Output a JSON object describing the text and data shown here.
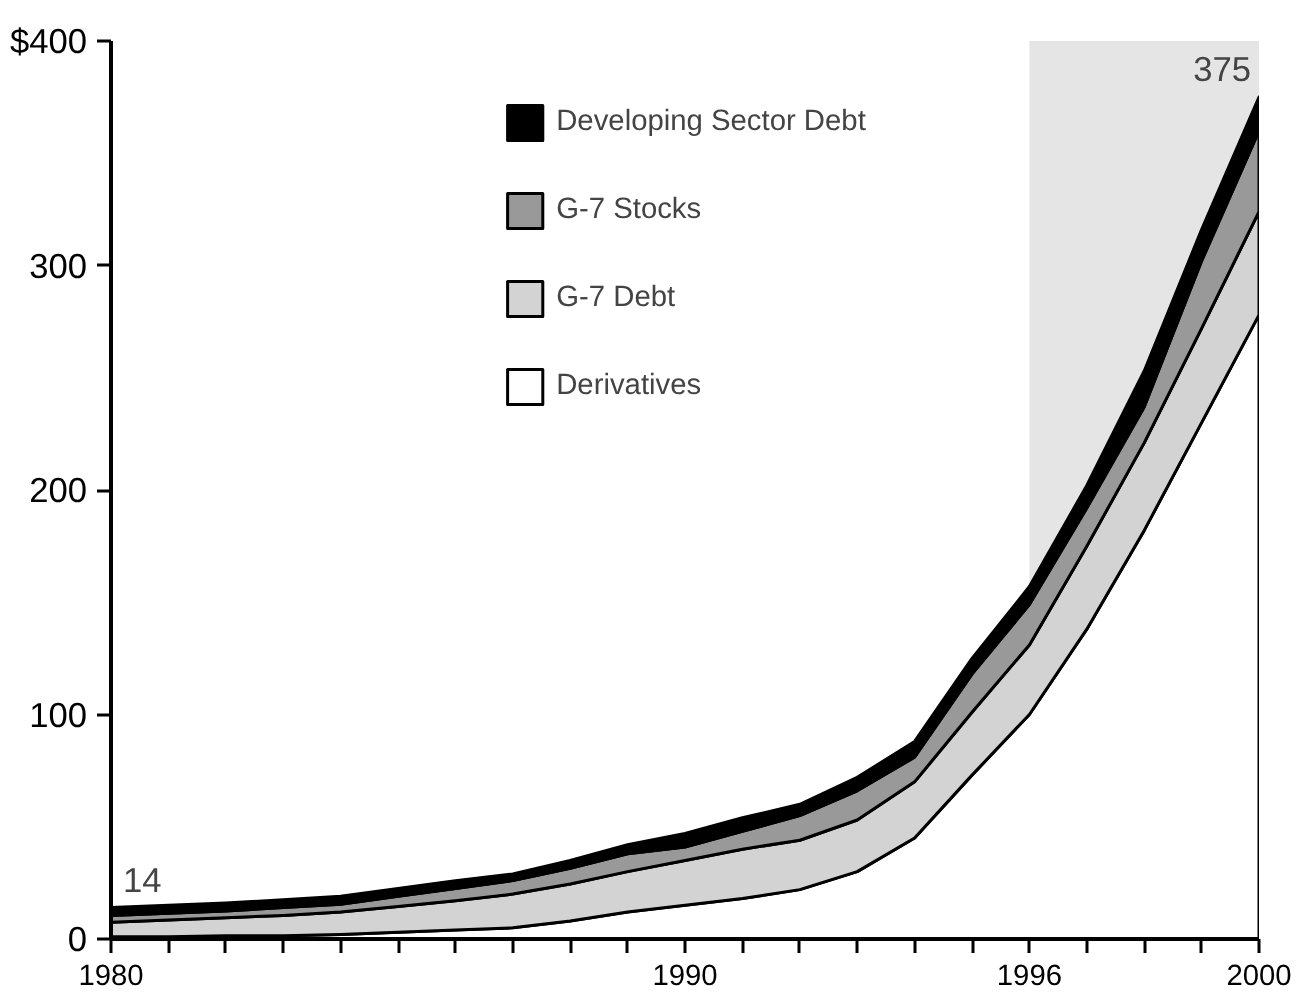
{
  "chart_data": {
    "type": "area",
    "stacked": true,
    "x": [
      1980,
      1981,
      1982,
      1983,
      1984,
      1985,
      1986,
      1987,
      1988,
      1989,
      1990,
      1991,
      1992,
      1993,
      1994,
      1995,
      1996,
      1997,
      1998,
      1999,
      2000
    ],
    "series": [
      {
        "name": "Derivatives",
        "color": "#ffffff",
        "values": [
          1,
          1,
          1.5,
          1.5,
          2,
          3,
          4,
          5,
          8,
          12,
          15,
          18,
          22,
          30,
          45,
          73,
          100,
          138,
          182,
          230,
          278
        ]
      },
      {
        "name": "G-7 Debt",
        "color": "#d3d3d3",
        "values": [
          6.5,
          7.5,
          8,
          9,
          10,
          11.5,
          13,
          15,
          16.5,
          18,
          20,
          22,
          22,
          23,
          25,
          28,
          31,
          37,
          39,
          42,
          46
        ]
      },
      {
        "name": "G-7 Stocks",
        "color": "#999999",
        "values": [
          3,
          3,
          3,
          3.5,
          3.5,
          4.5,
          5.5,
          6,
          7,
          8,
          6,
          8,
          11,
          13,
          11,
          17,
          18,
          17,
          16,
          30,
          36
        ]
      },
      {
        "name": "Developing Sector Debt",
        "color": "#000000",
        "values": [
          3.5,
          3.5,
          3.5,
          3.5,
          3.5,
          3.5,
          3.5,
          3,
          3.5,
          4,
          6,
          6,
          5,
          6,
          7,
          7,
          8,
          10,
          16,
          14,
          15
        ]
      }
    ],
    "xlim": [
      1980,
      2000
    ],
    "xticks": [
      1980,
      {
        "value": 1981,
        "label": null
      },
      {
        "value": 1982,
        "label": null
      },
      {
        "value": 1983,
        "label": null
      },
      {
        "value": 1984,
        "label": null
      },
      {
        "value": 1985,
        "label": null
      },
      {
        "value": 1986,
        "label": null
      },
      {
        "value": 1987,
        "label": null
      },
      {
        "value": 1988,
        "label": null
      },
      {
        "value": 1989,
        "label": null
      },
      1990,
      {
        "value": 1991,
        "label": null
      },
      {
        "value": 1992,
        "label": null
      },
      {
        "value": 1993,
        "label": null
      },
      {
        "value": 1994,
        "label": null
      },
      {
        "value": 1995,
        "label": null
      },
      1996,
      {
        "value": 1997,
        "label": null
      },
      {
        "value": 1998,
        "label": null
      },
      {
        "value": 1999,
        "label": null
      },
      2000
    ],
    "ylim": [
      0,
      400
    ],
    "yticks": [
      0,
      100,
      200,
      300,
      {
        "value": 400,
        "label": "$400"
      }
    ],
    "bands": [
      {
        "axis": "x",
        "from": 1996,
        "to": 2000,
        "color": "#e5e5e5"
      }
    ],
    "annotations": [
      {
        "text": "14",
        "x": 1980,
        "y": 14
      },
      {
        "text": "375",
        "x": 2000,
        "y": 375
      }
    ],
    "legend": "top",
    "grid": false
  }
}
